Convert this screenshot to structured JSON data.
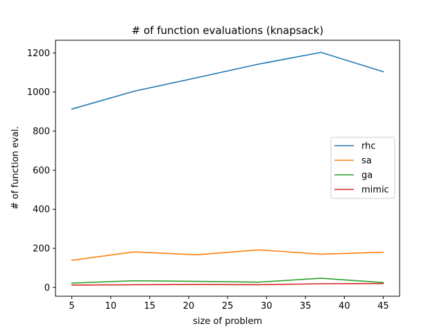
{
  "chart_data": {
    "type": "line",
    "title": "# of function evaluations (knapsack)",
    "xlabel": "size of problem",
    "ylabel": "# of function eval.",
    "x": [
      5,
      13,
      21,
      29,
      37,
      45
    ],
    "xlim": [
      2.9,
      47.1
    ],
    "ylim": [
      -45,
      1265
    ],
    "xticks": [
      5,
      10,
      15,
      20,
      25,
      30,
      35,
      40,
      45
    ],
    "yticks": [
      0,
      200,
      400,
      600,
      800,
      1000,
      1200
    ],
    "grid": false,
    "legend_position": "center-right",
    "series": [
      {
        "name": "rhc",
        "color": "#1f77b4",
        "values": [
          913,
          1004,
          1073,
          1143,
          1203,
          1104
        ]
      },
      {
        "name": "sa",
        "color": "#ff7f0e",
        "values": [
          139,
          182,
          167,
          192,
          170,
          180
        ]
      },
      {
        "name": "ga",
        "color": "#2ca02c",
        "values": [
          22,
          34,
          31,
          27,
          47,
          25
        ]
      },
      {
        "name": "mimic",
        "color": "#d62728",
        "values": [
          12,
          14,
          15,
          14,
          19,
          20
        ]
      }
    ]
  }
}
